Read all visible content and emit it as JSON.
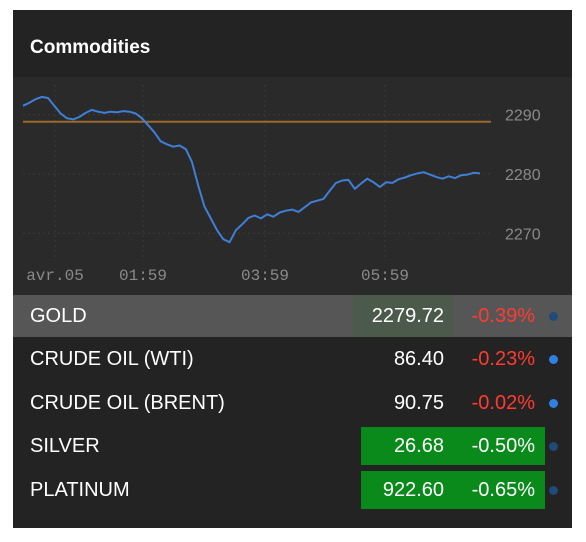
{
  "header": {
    "title": "Commodities"
  },
  "chart_data": {
    "type": "line",
    "x_tick_labels": [
      "avr.05",
      "01:59",
      "03:59",
      "05:59"
    ],
    "y_tick_labels": [
      "2290",
      "2280",
      "2270"
    ],
    "reference_line": 2288.8,
    "ylim": [
      2266,
      2295
    ],
    "series": [
      {
        "values": [
          2291.5,
          2292,
          2292.6,
          2293,
          2292.8,
          2291.5,
          2290.2,
          2289.4,
          2289.2,
          2289.6,
          2290.3,
          2290.8,
          2290.5,
          2290.3,
          2290.5,
          2290.4,
          2290.6,
          2290.5,
          2290.2,
          2289.4,
          2288.2,
          2287,
          2285.5,
          2285,
          2284.6,
          2284.8,
          2284.2,
          2282,
          2278,
          2274.5,
          2272.5,
          2270.5,
          2269,
          2268.5,
          2270.5,
          2271.5,
          2272.6,
          2273,
          2272.5,
          2273.2,
          2272.8,
          2273.5,
          2273.8,
          2274,
          2273.6,
          2274.4,
          2275.2,
          2275.5,
          2275.8,
          2277.2,
          2278.5,
          2278.9,
          2279,
          2277.5,
          2278.4,
          2279.2,
          2278.6,
          2277.8,
          2278.6,
          2278.5,
          2279.1,
          2279.4,
          2279.8,
          2280.1,
          2280.3,
          2279.9,
          2279.5,
          2279.2,
          2279.6,
          2279.3,
          2279.8,
          2279.9,
          2280.2,
          2280.1
        ]
      }
    ]
  },
  "rows": [
    {
      "name": "GOLD",
      "price": "2279.72",
      "change": "-0.39%"
    },
    {
      "name": "CRUDE OIL (WTI)",
      "price": "86.40",
      "change": "-0.23%"
    },
    {
      "name": "CRUDE OIL (BRENT)",
      "price": "90.75",
      "change": "-0.02%"
    },
    {
      "name": "SILVER",
      "price": "26.68",
      "change": "-0.50%"
    },
    {
      "name": "PLATINUM",
      "price": "922.60",
      "change": "-0.65%"
    }
  ],
  "colors": {
    "line": "#3f7fd6",
    "reference": "#9a6a2a",
    "negative": "#ff3b30",
    "green_box": "#0a8a1a",
    "dot_blue": "#2f80e0",
    "dot_dark": "#1f4a7a"
  }
}
